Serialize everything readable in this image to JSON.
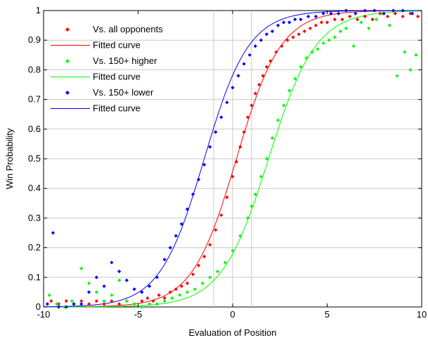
{
  "chart_data": {
    "type": "scatter",
    "xlabel": "Evaluation of Position",
    "ylabel": "Win Probability",
    "xlim": [
      -10,
      10
    ],
    "ylim": [
      0,
      1
    ],
    "xticks": [
      "-10",
      "-5",
      "0",
      "5",
      "10"
    ],
    "yticks": [
      "0",
      "0.1",
      "0.2",
      "0.3",
      "0.4",
      "0.5",
      "0.6",
      "0.7",
      "0.8",
      "0.9",
      "1"
    ],
    "grid": {
      "horizontal": true,
      "vertical_at_x": [
        -1,
        0,
        1
      ]
    },
    "legend_position": "top-left",
    "legend": [
      {
        "name": "Vs. all opponents",
        "kind": "marker",
        "color": "#ff0000"
      },
      {
        "name": "Fitted curve",
        "kind": "line",
        "color": "#ff0000"
      },
      {
        "name": "Vs. 150+ higher",
        "kind": "marker",
        "color": "#00ff00"
      },
      {
        "name": "Fitted curve",
        "kind": "line",
        "color": "#00ff00"
      },
      {
        "name": "Vs. 150+ lower",
        "kind": "marker",
        "color": "#0000ff"
      },
      {
        "name": "Fitted curve",
        "kind": "line",
        "color": "#0000ff"
      }
    ],
    "series": [
      {
        "color": "#ff0000",
        "points": [
          [
            -9.6,
            0.02
          ],
          [
            -9.2,
            0.01
          ],
          [
            -8.8,
            0.02
          ],
          [
            -8.4,
            0.01
          ],
          [
            -8.0,
            0.02
          ],
          [
            -7.6,
            0.01
          ],
          [
            -7.2,
            0.02
          ],
          [
            -6.8,
            0.01
          ],
          [
            -6.4,
            0.02
          ],
          [
            -6.0,
            0.01
          ],
          [
            -5.6,
            0.02
          ],
          [
            -5.2,
            0.01
          ],
          [
            -4.8,
            0.02
          ],
          [
            -4.5,
            0.03
          ],
          [
            -4.2,
            0.02
          ],
          [
            -3.9,
            0.04
          ],
          [
            -3.6,
            0.03
          ],
          [
            -3.3,
            0.05
          ],
          [
            -3.0,
            0.06
          ],
          [
            -2.7,
            0.07
          ],
          [
            -2.4,
            0.08
          ],
          [
            -2.1,
            0.11
          ],
          [
            -1.8,
            0.14
          ],
          [
            -1.5,
            0.17
          ],
          [
            -1.2,
            0.21
          ],
          [
            -0.9,
            0.26
          ],
          [
            -0.6,
            0.31
          ],
          [
            -0.3,
            0.37
          ],
          [
            0.0,
            0.44
          ],
          [
            0.2,
            0.49
          ],
          [
            0.4,
            0.54
          ],
          [
            0.6,
            0.59
          ],
          [
            0.8,
            0.64
          ],
          [
            1.0,
            0.68
          ],
          [
            1.2,
            0.72
          ],
          [
            1.4,
            0.75
          ],
          [
            1.6,
            0.78
          ],
          [
            1.8,
            0.81
          ],
          [
            2.0,
            0.83
          ],
          [
            2.3,
            0.86
          ],
          [
            2.6,
            0.88
          ],
          [
            2.9,
            0.9
          ],
          [
            3.2,
            0.91
          ],
          [
            3.5,
            0.92
          ],
          [
            3.8,
            0.93
          ],
          [
            4.1,
            0.94
          ],
          [
            4.4,
            0.95
          ],
          [
            4.7,
            0.96
          ],
          [
            5.0,
            0.96
          ],
          [
            5.4,
            0.97
          ],
          [
            5.8,
            0.97
          ],
          [
            6.2,
            0.98
          ],
          [
            6.6,
            0.97
          ],
          [
            7.0,
            0.98
          ],
          [
            7.4,
            0.97
          ],
          [
            7.8,
            0.99
          ],
          [
            8.2,
            0.98
          ],
          [
            8.6,
            0.99
          ],
          [
            9.0,
            0.98
          ],
          [
            9.4,
            0.99
          ],
          [
            9.8,
            0.98
          ]
        ],
        "fit": {
          "center": 0.2,
          "slope": 0.85
        }
      },
      {
        "color": "#00ff00",
        "points": [
          [
            -9.7,
            0.04
          ],
          [
            -9.3,
            0.01
          ],
          [
            -8.9,
            0.0
          ],
          [
            -8.5,
            0.02
          ],
          [
            -8.0,
            0.13
          ],
          [
            -7.6,
            0.08
          ],
          [
            -7.2,
            0.05
          ],
          [
            -6.8,
            0.02
          ],
          [
            -6.4,
            0.04
          ],
          [
            -6.0,
            0.09
          ],
          [
            -5.6,
            0.02
          ],
          [
            -5.2,
            0.01
          ],
          [
            -4.8,
            0.0
          ],
          [
            -4.4,
            0.01
          ],
          [
            -4.0,
            0.01
          ],
          [
            -3.6,
            0.02
          ],
          [
            -3.2,
            0.03
          ],
          [
            -2.8,
            0.04
          ],
          [
            -2.4,
            0.05
          ],
          [
            -2.0,
            0.06
          ],
          [
            -1.6,
            0.08
          ],
          [
            -1.2,
            0.1
          ],
          [
            -0.8,
            0.12
          ],
          [
            -0.4,
            0.15
          ],
          [
            0.0,
            0.19
          ],
          [
            0.4,
            0.24
          ],
          [
            0.8,
            0.3
          ],
          [
            1.0,
            0.34
          ],
          [
            1.2,
            0.38
          ],
          [
            1.5,
            0.44
          ],
          [
            1.8,
            0.5
          ],
          [
            2.1,
            0.57
          ],
          [
            2.4,
            0.63
          ],
          [
            2.7,
            0.68
          ],
          [
            3.0,
            0.73
          ],
          [
            3.3,
            0.77
          ],
          [
            3.6,
            0.81
          ],
          [
            3.9,
            0.84
          ],
          [
            4.2,
            0.86
          ],
          [
            4.5,
            0.87
          ],
          [
            4.8,
            0.89
          ],
          [
            5.1,
            0.9
          ],
          [
            5.4,
            0.91
          ],
          [
            5.7,
            0.93
          ],
          [
            6.0,
            0.94
          ],
          [
            6.4,
            0.88
          ],
          [
            6.8,
            0.96
          ],
          [
            7.2,
            0.94
          ],
          [
            7.6,
            0.97
          ],
          [
            7.9,
            0.99
          ],
          [
            8.3,
            0.95
          ],
          [
            8.7,
            0.78
          ],
          [
            9.1,
            0.86
          ],
          [
            9.4,
            0.8
          ],
          [
            9.7,
            0.85
          ]
        ],
        "fit": {
          "center": 1.9,
          "slope": 0.8
        }
      },
      {
        "color": "#0000ff",
        "points": [
          [
            -9.8,
            0.01
          ],
          [
            -9.5,
            0.25
          ],
          [
            -9.2,
            0.0
          ],
          [
            -8.8,
            0.0
          ],
          [
            -8.4,
            0.01
          ],
          [
            -8.0,
            0.01
          ],
          [
            -7.6,
            0.05
          ],
          [
            -7.2,
            0.1
          ],
          [
            -6.8,
            0.07
          ],
          [
            -6.4,
            0.15
          ],
          [
            -6.0,
            0.12
          ],
          [
            -5.6,
            0.09
          ],
          [
            -5.2,
            0.06
          ],
          [
            -4.8,
            0.05
          ],
          [
            -4.4,
            0.07
          ],
          [
            -4.0,
            0.1
          ],
          [
            -3.6,
            0.16
          ],
          [
            -3.3,
            0.2
          ],
          [
            -3.0,
            0.24
          ],
          [
            -2.7,
            0.28
          ],
          [
            -2.4,
            0.33
          ],
          [
            -2.1,
            0.38
          ],
          [
            -1.8,
            0.43
          ],
          [
            -1.5,
            0.48
          ],
          [
            -1.2,
            0.54
          ],
          [
            -0.9,
            0.59
          ],
          [
            -0.6,
            0.64
          ],
          [
            -0.3,
            0.69
          ],
          [
            0.0,
            0.74
          ],
          [
            0.3,
            0.78
          ],
          [
            0.6,
            0.82
          ],
          [
            0.9,
            0.85
          ],
          [
            1.2,
            0.88
          ],
          [
            1.5,
            0.9
          ],
          [
            1.8,
            0.92
          ],
          [
            2.1,
            0.93
          ],
          [
            2.4,
            0.95
          ],
          [
            2.7,
            0.96
          ],
          [
            3.0,
            0.96
          ],
          [
            3.3,
            0.97
          ],
          [
            3.6,
            0.97
          ],
          [
            4.0,
            0.98
          ],
          [
            4.4,
            0.98
          ],
          [
            4.8,
            0.99
          ],
          [
            5.2,
            0.99
          ],
          [
            5.6,
            0.99
          ],
          [
            6.0,
            1.0
          ],
          [
            6.5,
            0.99
          ],
          [
            7.0,
            1.0
          ],
          [
            7.5,
            1.0
          ],
          [
            8.0,
            0.99
          ],
          [
            8.5,
            1.0
          ],
          [
            9.0,
            1.0
          ],
          [
            9.5,
            0.99
          ]
        ],
        "fit": {
          "center": -1.5,
          "slope": 0.85
        }
      }
    ]
  }
}
